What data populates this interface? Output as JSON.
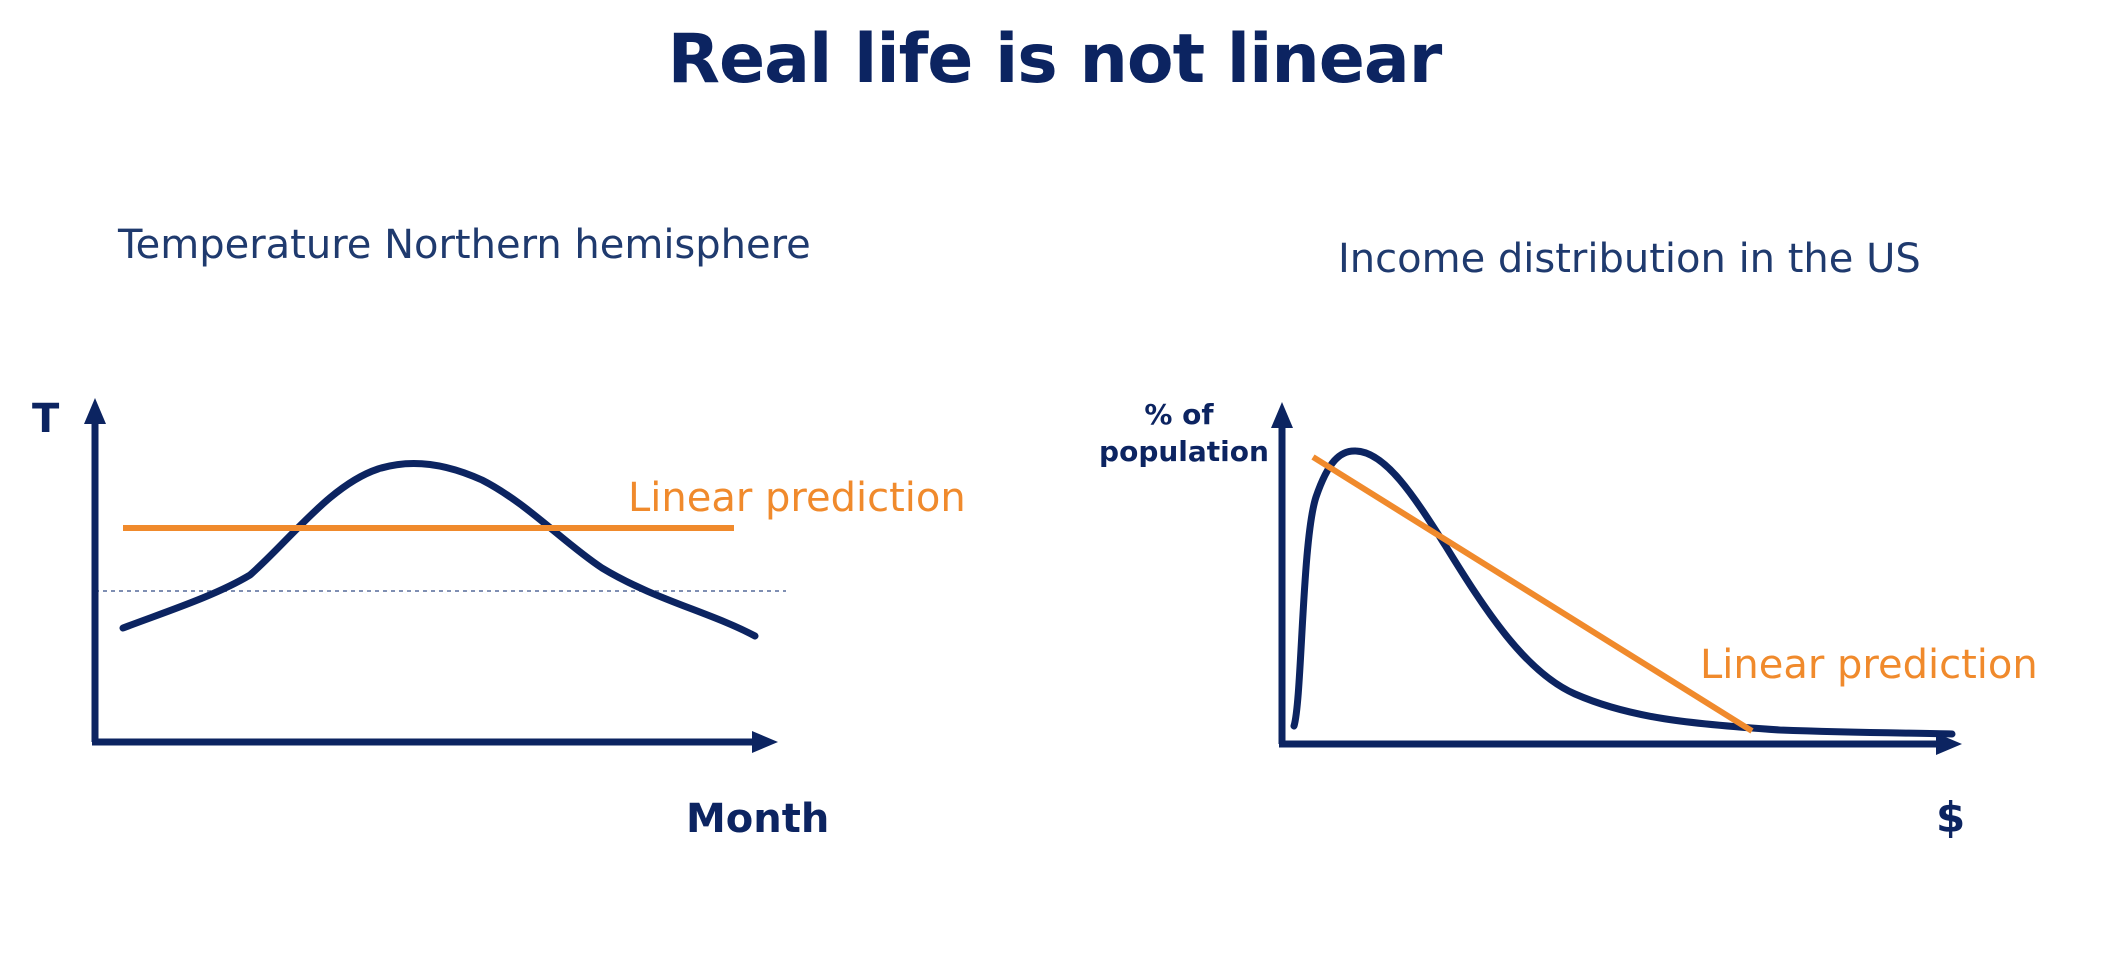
{
  "title": "Real life is not linear",
  "colors": {
    "navy": "#0c2461",
    "orange": "#f08a2c",
    "dotted": "#7f8fb3"
  },
  "left_diagram": {
    "subtitle": "Temperature Northern hemisphere",
    "y_label": "T",
    "x_label": "Month",
    "prediction_label": "Linear prediction"
  },
  "right_diagram": {
    "subtitle": "Income distribution in the US",
    "y_label_line1": "% of",
    "y_label_line2": "population",
    "x_label": "$",
    "prediction_label": "Linear prediction"
  }
}
